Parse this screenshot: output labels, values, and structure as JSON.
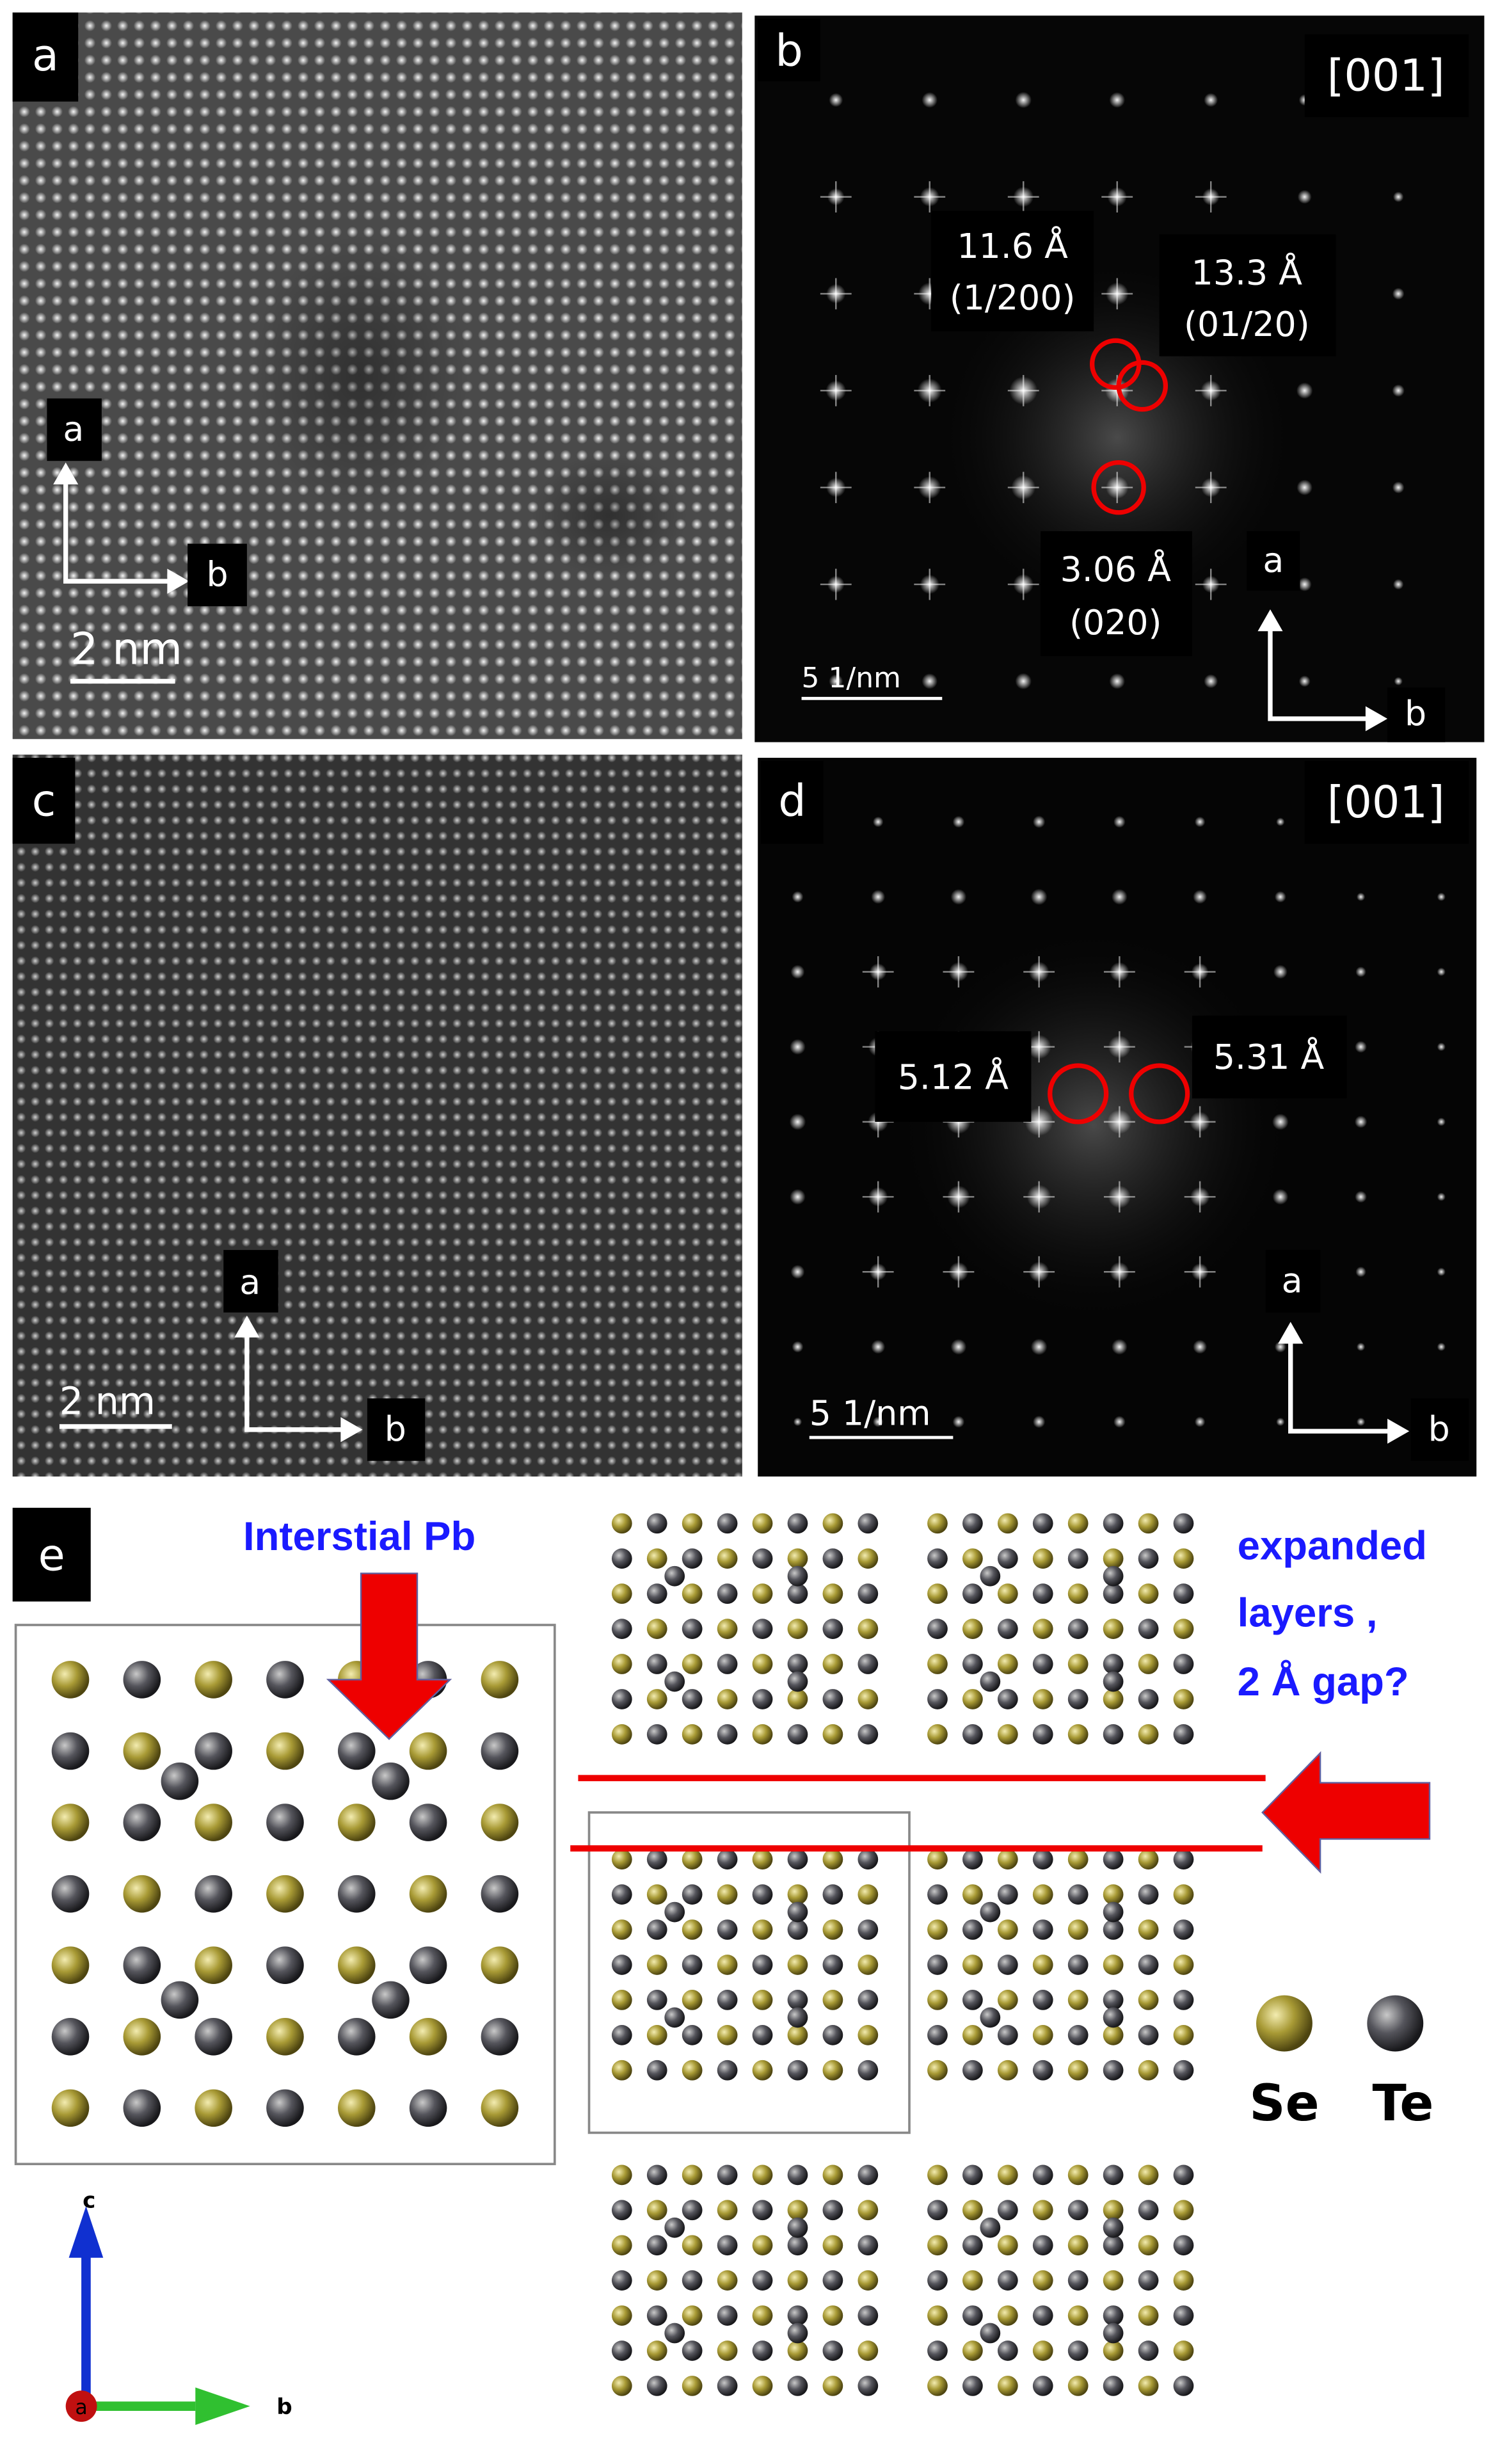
{
  "panel_a": {
    "label": "a",
    "axis_up": "a",
    "axis_right": "b",
    "scale_bar": "2 nm"
  },
  "panel_b": {
    "label": "b",
    "zone_axis": "[001]",
    "spots": [
      {
        "d": "11.6 Å",
        "hkl": "(1/200)"
      },
      {
        "d": "13.3 Å",
        "hkl": "(01/20)"
      },
      {
        "d": "3.06 Å",
        "hkl": "(020)"
      }
    ],
    "scale_bar": "5 1/nm",
    "axis_up": "a",
    "axis_right": "b"
  },
  "panel_c": {
    "label": "c",
    "axis_up": "a",
    "axis_right": "b",
    "scale_bar": "2 nm"
  },
  "panel_d": {
    "label": "d",
    "zone_axis": "[001]",
    "spots": [
      "5.12 Å",
      "5.31 Å"
    ],
    "scale_bar": "5 1/nm",
    "axis_up": "a",
    "axis_right": "b"
  },
  "panel_e": {
    "label": "e",
    "arrow_note": "Interstial Pb",
    "gap_note": [
      "expanded",
      "layers ,",
      "2 Å gap?"
    ],
    "legend": [
      "Se",
      "Te"
    ],
    "axes": {
      "up": "c",
      "out": "a",
      "right": "b"
    }
  }
}
